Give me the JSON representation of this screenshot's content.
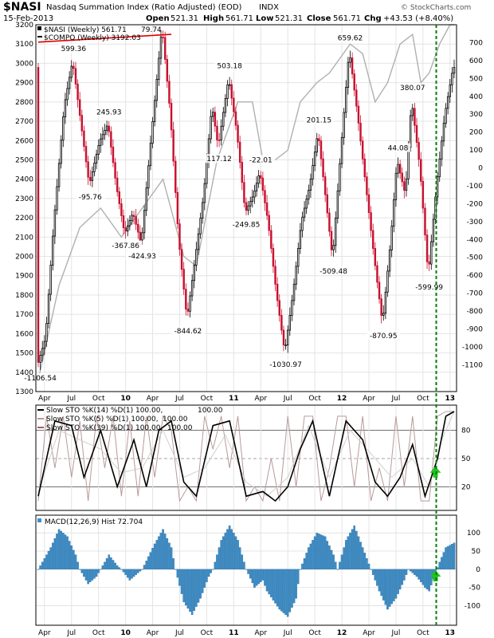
{
  "header": {
    "symbol": "$NASI",
    "name": "Nasdaq Summation Index (Ratio Adjusted) (EOD)",
    "exchange": "INDX",
    "date": "15-Feb-2013",
    "open_label": "Open",
    "open": "521.31",
    "high_label": "High",
    "high": "561.71",
    "low_label": "Low",
    "low": "521.31",
    "close_label": "Close",
    "close": "561.71",
    "chg_label": "Chg",
    "chg": "+43.53 (+8.40%)",
    "brand": "© StockCharts.com"
  },
  "colors": {
    "up": "#000000",
    "down": "#c8102e",
    "compq": "#b0b0b0",
    "trend": "#e00000",
    "marker": "#008000",
    "macd": "#3d8ec9",
    "sto14": "#000000",
    "sto5": "#b89a9a",
    "sto39": "#a06060"
  },
  "chart_data": [
    {
      "type": "line",
      "panel": "price",
      "title": "$NASI (Weekly) 561.71",
      "legend": [
        "$NASI (Weekly) 561.71",
        "$COMPQ (Weekly) 3192.03"
      ],
      "legend_extra": "79.74",
      "ylim_left": [
        1300,
        3200
      ],
      "ylim_right": [
        -1250,
        800
      ],
      "yticks_left": [
        1300,
        1400,
        1500,
        1600,
        1700,
        1800,
        1900,
        2000,
        2100,
        2200,
        2300,
        2400,
        2500,
        2600,
        2700,
        2800,
        2900,
        3000,
        3100,
        3200
      ],
      "yticks_right": [
        -1100,
        -1000,
        -900,
        -800,
        -700,
        -600,
        -500,
        -400,
        -300,
        -200,
        -100,
        0,
        100,
        200,
        300,
        400,
        500,
        600,
        700
      ],
      "x_labels": [
        "Apr",
        "Jul",
        "Oct",
        "10",
        "Apr",
        "Jul",
        "Oct",
        "11",
        "Apr",
        "Jul",
        "Oct",
        "12",
        "Apr",
        "Jul",
        "Oct",
        "13"
      ],
      "nasi_path": [
        [
          0,
          -1106.54
        ],
        [
          4,
          -950
        ],
        [
          8,
          -300
        ],
        [
          13,
          350
        ],
        [
          17,
          599.36
        ],
        [
          21,
          250
        ],
        [
          25,
          -95.76
        ],
        [
          30,
          150
        ],
        [
          34,
          245.93
        ],
        [
          38,
          -100
        ],
        [
          42,
          -367.86
        ],
        [
          46,
          -250
        ],
        [
          50,
          -424.93
        ],
        [
          55,
          200
        ],
        [
          60,
          790
        ],
        [
          64,
          300
        ],
        [
          68,
          -400
        ],
        [
          72,
          -844.62
        ],
        [
          76,
          -500
        ],
        [
          80,
          -150
        ],
        [
          84,
          350
        ],
        [
          87,
          117.12
        ],
        [
          92,
          503.18
        ],
        [
          96,
          200
        ],
        [
          100,
          -249.85
        ],
        [
          104,
          -150
        ],
        [
          107,
          -22.01
        ],
        [
          111,
          -300
        ],
        [
          115,
          -700
        ],
        [
          119,
          -1030.97
        ],
        [
          123,
          -700
        ],
        [
          127,
          -300
        ],
        [
          131,
          -100
        ],
        [
          135,
          201.15
        ],
        [
          139,
          -200
        ],
        [
          142,
          -509.48
        ],
        [
          146,
          100
        ],
        [
          150,
          659.62
        ],
        [
          154,
          300
        ],
        [
          158,
          -100
        ],
        [
          162,
          -500
        ],
        [
          166,
          -870.95
        ],
        [
          170,
          -400
        ],
        [
          173,
          44.08
        ],
        [
          177,
          -150
        ],
        [
          180,
          380.07
        ],
        [
          184,
          0
        ],
        [
          188,
          -599.99
        ],
        [
          192,
          -100
        ],
        [
          196,
          300
        ],
        [
          200,
          561.71
        ]
      ],
      "compq": [
        [
          0,
          1360
        ],
        [
          10,
          1850
        ],
        [
          20,
          2150
        ],
        [
          30,
          2250
        ],
        [
          40,
          2100
        ],
        [
          50,
          2250
        ],
        [
          60,
          2400
        ],
        [
          70,
          2000
        ],
        [
          76,
          1950
        ],
        [
          86,
          2500
        ],
        [
          96,
          2800
        ],
        [
          103,
          2800
        ],
        [
          108,
          2500
        ],
        [
          114,
          2500
        ],
        [
          120,
          2550
        ],
        [
          126,
          2800
        ],
        [
          134,
          2900
        ],
        [
          140,
          2950
        ],
        [
          150,
          3100
        ],
        [
          156,
          3050
        ],
        [
          162,
          2800
        ],
        [
          168,
          2900
        ],
        [
          174,
          3100
        ],
        [
          180,
          3150
        ],
        [
          184,
          2900
        ],
        [
          188,
          2950
        ],
        [
          193,
          3100
        ],
        [
          198,
          3200
        ],
        [
          200,
          3200
        ]
      ],
      "annotations": [
        {
          "t": 17,
          "v": 599.36,
          "text": "599.36"
        },
        {
          "t": 25,
          "v": -95.76,
          "text": "-95.76"
        },
        {
          "t": 34,
          "v": 245.93,
          "text": "245.93"
        },
        {
          "t": 42,
          "v": -367.86,
          "text": "-367.86"
        },
        {
          "t": 50,
          "v": -424.93,
          "text": "-424.93"
        },
        {
          "t": 72,
          "v": -844.62,
          "text": "-844.62"
        },
        {
          "t": 87,
          "v": 117.12,
          "text": "117.12"
        },
        {
          "t": 92,
          "v": 503.18,
          "text": "503.18"
        },
        {
          "t": 100,
          "v": -249.85,
          "text": "-249.85"
        },
        {
          "t": 107,
          "v": -22.01,
          "text": "-22.01"
        },
        {
          "t": 119,
          "v": -1030.97,
          "text": "-1030.97"
        },
        {
          "t": 135,
          "v": 201.15,
          "text": "201.15"
        },
        {
          "t": 142,
          "v": -509.48,
          "text": "-509.48"
        },
        {
          "t": 150,
          "v": 659.62,
          "text": "659.62"
        },
        {
          "t": 166,
          "v": -870.95,
          "text": "-870.95"
        },
        {
          "t": 173,
          "v": 44.08,
          "text": "44.08"
        },
        {
          "t": 180,
          "v": 380.07,
          "text": "380.07"
        },
        {
          "t": 188,
          "v": -599.99,
          "text": "-599.99"
        },
        {
          "t": 1,
          "v": -1106.54,
          "text": "-1106.54"
        }
      ],
      "trendline": [
        [
          0,
          3110
        ],
        [
          64,
          3150
        ]
      ]
    },
    {
      "type": "line",
      "panel": "stochastic",
      "legend": [
        {
          "text": "Slow STO %K(14) %D(1) 100.00,",
          "value": "100.00"
        },
        {
          "text": "Slow STO %K(5) %D(1) 100.00,",
          "value": "100.00"
        },
        {
          "text": "Slow STO %K(39) %D(1) 100.00,",
          "value": "100.00"
        }
      ],
      "ylim": [
        0,
        100
      ],
      "yticks": [
        20,
        50,
        80
      ],
      "sto14": [
        [
          0,
          10
        ],
        [
          8,
          90
        ],
        [
          16,
          85
        ],
        [
          22,
          30
        ],
        [
          30,
          80
        ],
        [
          38,
          20
        ],
        [
          46,
          70
        ],
        [
          52,
          20
        ],
        [
          58,
          80
        ],
        [
          64,
          90
        ],
        [
          70,
          25
        ],
        [
          76,
          10
        ],
        [
          84,
          85
        ],
        [
          92,
          90
        ],
        [
          100,
          10
        ],
        [
          108,
          15
        ],
        [
          114,
          5
        ],
        [
          120,
          20
        ],
        [
          126,
          60
        ],
        [
          132,
          90
        ],
        [
          140,
          10
        ],
        [
          148,
          90
        ],
        [
          156,
          70
        ],
        [
          162,
          25
        ],
        [
          168,
          10
        ],
        [
          174,
          30
        ],
        [
          180,
          65
        ],
        [
          186,
          10
        ],
        [
          192,
          50
        ],
        [
          196,
          95
        ],
        [
          200,
          100
        ]
      ],
      "sto5": [
        [
          0,
          5
        ],
        [
          4,
          95
        ],
        [
          8,
          40
        ],
        [
          12,
          95
        ],
        [
          16,
          30
        ],
        [
          20,
          90
        ],
        [
          24,
          5
        ],
        [
          28,
          95
        ],
        [
          32,
          40
        ],
        [
          36,
          95
        ],
        [
          40,
          10
        ],
        [
          44,
          90
        ],
        [
          48,
          10
        ],
        [
          52,
          95
        ],
        [
          56,
          30
        ],
        [
          60,
          95
        ],
        [
          64,
          80
        ],
        [
          68,
          5
        ],
        [
          72,
          20
        ],
        [
          76,
          5
        ],
        [
          80,
          95
        ],
        [
          84,
          60
        ],
        [
          88,
          95
        ],
        [
          92,
          40
        ],
        [
          96,
          95
        ],
        [
          100,
          5
        ],
        [
          104,
          20
        ],
        [
          108,
          5
        ],
        [
          112,
          50
        ],
        [
          116,
          5
        ],
        [
          120,
          95
        ],
        [
          124,
          20
        ],
        [
          128,
          95
        ],
        [
          132,
          95
        ],
        [
          136,
          5
        ],
        [
          140,
          40
        ],
        [
          144,
          95
        ],
        [
          148,
          95
        ],
        [
          152,
          20
        ],
        [
          156,
          95
        ],
        [
          160,
          5
        ],
        [
          164,
          40
        ],
        [
          168,
          5
        ],
        [
          172,
          95
        ],
        [
          176,
          20
        ],
        [
          180,
          95
        ],
        [
          184,
          5
        ],
        [
          188,
          5
        ],
        [
          192,
          95
        ],
        [
          196,
          100
        ],
        [
          200,
          100
        ]
      ],
      "sto39": [
        [
          0,
          15
        ],
        [
          10,
          80
        ],
        [
          20,
          70
        ],
        [
          30,
          60
        ],
        [
          40,
          35
        ],
        [
          50,
          40
        ],
        [
          60,
          80
        ],
        [
          70,
          30
        ],
        [
          80,
          40
        ],
        [
          90,
          75
        ],
        [
          100,
          25
        ],
        [
          110,
          10
        ],
        [
          120,
          30
        ],
        [
          130,
          85
        ],
        [
          140,
          30
        ],
        [
          150,
          80
        ],
        [
          160,
          55
        ],
        [
          170,
          30
        ],
        [
          180,
          50
        ],
        [
          188,
          20
        ],
        [
          194,
          70
        ],
        [
          200,
          100
        ]
      ],
      "marker": {
        "t": 191,
        "v": 35
      }
    },
    {
      "type": "bar",
      "panel": "macd",
      "legend": "MACD(12,26,9) Hist 72.704",
      "ylim": [
        -145,
        140
      ],
      "yticks": [
        -100,
        -50,
        0,
        50,
        100
      ],
      "hist_path": [
        [
          0,
          0
        ],
        [
          6,
          60
        ],
        [
          10,
          110
        ],
        [
          14,
          90
        ],
        [
          18,
          40
        ],
        [
          20,
          0
        ],
        [
          24,
          -40
        ],
        [
          28,
          -20
        ],
        [
          30,
          0
        ],
        [
          34,
          40
        ],
        [
          38,
          10
        ],
        [
          40,
          0
        ],
        [
          44,
          -30
        ],
        [
          48,
          -10
        ],
        [
          50,
          0
        ],
        [
          56,
          70
        ],
        [
          60,
          110
        ],
        [
          64,
          60
        ],
        [
          66,
          0
        ],
        [
          70,
          -90
        ],
        [
          74,
          -125
        ],
        [
          78,
          -80
        ],
        [
          82,
          -20
        ],
        [
          84,
          0
        ],
        [
          88,
          80
        ],
        [
          92,
          120
        ],
        [
          96,
          80
        ],
        [
          100,
          0
        ],
        [
          104,
          -50
        ],
        [
          108,
          -30
        ],
        [
          110,
          -60
        ],
        [
          116,
          -110
        ],
        [
          120,
          -130
        ],
        [
          124,
          -80
        ],
        [
          126,
          0
        ],
        [
          130,
          60
        ],
        [
          134,
          100
        ],
        [
          138,
          90
        ],
        [
          142,
          40
        ],
        [
          144,
          0
        ],
        [
          148,
          80
        ],
        [
          152,
          120
        ],
        [
          156,
          60
        ],
        [
          160,
          0
        ],
        [
          164,
          -60
        ],
        [
          168,
          -110
        ],
        [
          172,
          -80
        ],
        [
          176,
          -30
        ],
        [
          178,
          0
        ],
        [
          182,
          -20
        ],
        [
          186,
          -50
        ],
        [
          188,
          -60
        ],
        [
          191,
          -10
        ],
        [
          193,
          20
        ],
        [
          196,
          60
        ],
        [
          200,
          72.704
        ]
      ],
      "marker": {
        "t": 191,
        "v": -20
      }
    }
  ],
  "x_axis": {
    "labels": [
      "Apr",
      "Jul",
      "Oct",
      "10",
      "Apr",
      "Jul",
      "Oct",
      "11",
      "Apr",
      "Jul",
      "Oct",
      "12",
      "Apr",
      "Jul",
      "Oct",
      "13"
    ],
    "bold_labels": [
      "10",
      "11",
      "12",
      "13"
    ]
  }
}
